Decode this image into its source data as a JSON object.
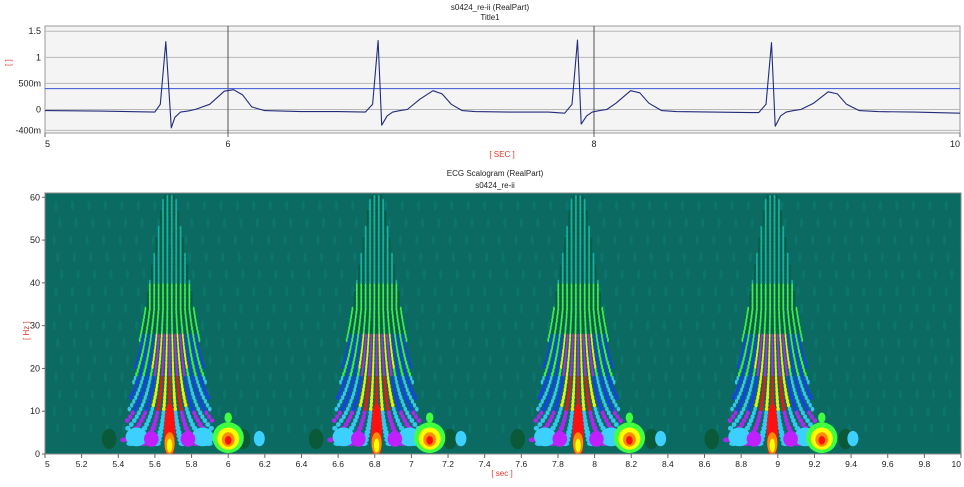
{
  "chart_data": [
    {
      "type": "line",
      "title": "s0424_re-ii (RealPart)",
      "subtitle": "Title1",
      "xlabel": "[ SEC ]",
      "ylabel": "[ ]",
      "xlim": [
        5,
        10
      ],
      "ylim": [
        -0.45,
        1.6
      ],
      "x_ticks": [
        5,
        6,
        8,
        10
      ],
      "x_tick_labels": [
        "5",
        "6",
        "8",
        "10"
      ],
      "y_ticks": [
        1.5,
        1,
        0.5,
        0,
        -0.4
      ],
      "y_tick_labels": [
        "1.5",
        "1",
        "500m",
        "0",
        "-400m"
      ],
      "vertical_cursors": [
        6,
        8
      ],
      "horizontal_cursor": 0.4,
      "grid": "horizontal",
      "line_color": "#232b7a",
      "series": [
        {
          "x": [
            5,
            5.3,
            5.6,
            5.63,
            5.66,
            5.69,
            5.71,
            5.74,
            5.78,
            5.82,
            5.9,
            5.98,
            6.03,
            6.08,
            6.13,
            6.2,
            6.4,
            6.6,
            6.75,
            6.79,
            6.82,
            6.84,
            6.87,
            6.9,
            6.94,
            6.98,
            7.05,
            7.12,
            7.17,
            7.22,
            7.28,
            7.35,
            7.55,
            7.75,
            7.84,
            7.88,
            7.91,
            7.93,
            7.96,
            7.99,
            8.03,
            8.07,
            8.12,
            8.2,
            8.25,
            8.3,
            8.37,
            8.45,
            8.65,
            8.85,
            8.9,
            8.94,
            8.97,
            8.99,
            9.02,
            9.05,
            9.09,
            9.13,
            9.2,
            9.28,
            9.33,
            9.38,
            9.45,
            9.55,
            9.75,
            10
          ],
          "y": [
            -0.02,
            -0.03,
            -0.05,
            0.1,
            1.3,
            -0.35,
            -0.15,
            -0.05,
            -0.03,
            0,
            0.1,
            0.35,
            0.38,
            0.28,
            0.05,
            -0.02,
            -0.04,
            -0.04,
            -0.05,
            0.1,
            1.32,
            -0.3,
            -0.12,
            -0.05,
            -0.02,
            0,
            0.2,
            0.36,
            0.3,
            0.1,
            -0.02,
            -0.04,
            -0.05,
            -0.05,
            -0.07,
            0.1,
            1.33,
            -0.28,
            -0.12,
            -0.05,
            -0.02,
            0,
            0.12,
            0.36,
            0.32,
            0.12,
            -0.02,
            -0.04,
            -0.05,
            -0.06,
            -0.06,
            0.1,
            1.28,
            -0.32,
            -0.12,
            -0.05,
            -0.02,
            0,
            0.12,
            0.34,
            0.3,
            0.1,
            -0.02,
            -0.04,
            -0.05,
            -0.07
          ]
        }
      ]
    },
    {
      "type": "heatmap",
      "title": "ECG Scalogram (RealPart)",
      "subtitle": "s0424_re-ii",
      "xlabel": "[ sec ]",
      "ylabel": "[ Hz ]",
      "xlim": [
        5,
        10
      ],
      "ylim": [
        0,
        61
      ],
      "x_ticks": [
        5,
        5.2,
        5.4,
        5.6,
        5.8,
        6,
        6.2,
        6.4,
        6.6,
        6.8,
        7,
        7.2,
        7.4,
        7.6,
        7.8,
        8,
        8.2,
        8.4,
        8.6,
        8.8,
        9,
        9.2,
        9.4,
        9.6,
        9.8,
        10
      ],
      "x_tick_labels": [
        "5",
        "5.2",
        "5.4",
        "5.6",
        "5.8",
        "6",
        "6.2",
        "6.4",
        "6.6",
        "6.8",
        "7",
        "7.2",
        "7.4",
        "7.6",
        "7.8",
        "8",
        "8.2",
        "8.4",
        "8.6",
        "8.8",
        "9",
        "9.2",
        "9.4",
        "9.6",
        "9.8",
        "10"
      ],
      "y_ticks": [
        0,
        10,
        20,
        30,
        40,
        50,
        60
      ],
      "y_tick_labels": [
        "0",
        "10",
        "20",
        "30",
        "40",
        "50",
        "60"
      ],
      "background_color": "#0b6b62",
      "colormap": [
        "#0b6b62",
        "#0a5a3a",
        "#14b8b0",
        "#3cd0ff",
        "#1a3cff",
        "#c020ff",
        "#ff1010",
        "#ff8c00",
        "#ffff00",
        "#40ff40"
      ],
      "r_peaks": [
        5.68,
        6.81,
        7.91,
        8.97
      ],
      "t_waves": [
        6.0,
        7.1,
        8.19,
        9.24
      ]
    }
  ]
}
